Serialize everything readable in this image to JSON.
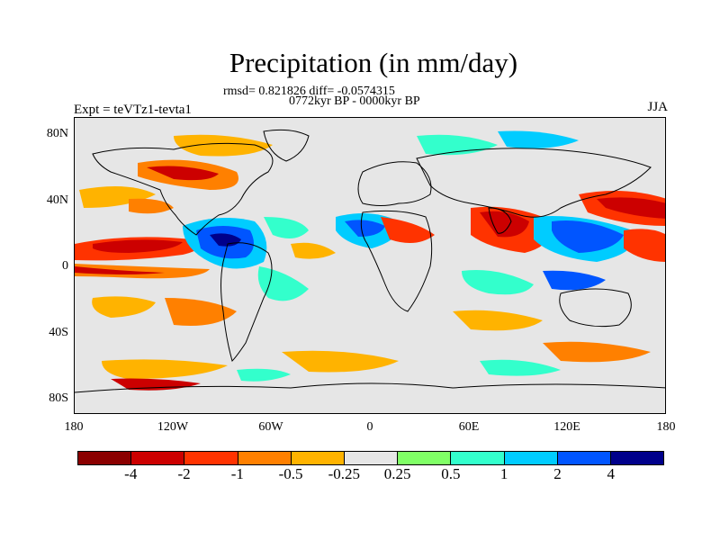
{
  "title": "Precipitation (in mm/day)",
  "stats_line": "rmsd= 0.821826 diff= -0.0574315",
  "period_line": "0772kyr BP - 0000kyr BP",
  "experiment_label": "Expt = teVTz1-tevta1",
  "season_label": "JJA",
  "y_axis": {
    "ticks": [
      "80N",
      "40N",
      "0",
      "40S",
      "80S"
    ]
  },
  "x_axis": {
    "ticks": [
      "180",
      "120W",
      "60W",
      "0",
      "60E",
      "120E",
      "180"
    ]
  },
  "colorbar": {
    "colors": [
      "#8b0000",
      "#cc0000",
      "#ff3300",
      "#ff8000",
      "#ffb300",
      "#e6e6e6",
      "#80ff66",
      "#33ffcc",
      "#00ccff",
      "#0055ff",
      "#00008b"
    ],
    "labels": [
      "-4",
      "-2",
      "-1",
      "-0.5",
      "-0.25",
      "0.25",
      "0.5",
      "1",
      "2",
      "4"
    ]
  }
}
